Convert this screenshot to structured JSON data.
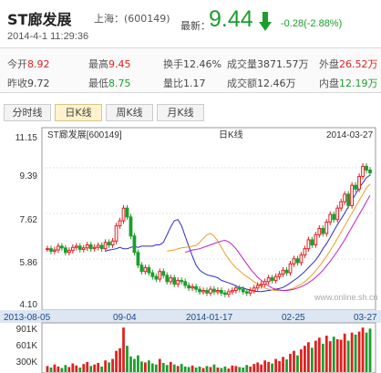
{
  "header": {
    "name": "ST廊发展",
    "exchange": "上海：(600149)",
    "datetime": "2014-4-1 11:29:36",
    "latest_label": "最新：",
    "price": "9.44",
    "change": "-0.28(-2.88%)",
    "arrow_icon": "down-arrow-icon"
  },
  "stats": {
    "open_label": "今开",
    "open": "8.92",
    "high_label": "最高",
    "high": "9.45",
    "turnover_label": "换手",
    "turnover": "12.46%",
    "volume_label": "成交量",
    "volume": "3871.57万",
    "outer_label": "外盘",
    "outer": "26.52万",
    "prev_label": "昨收",
    "prev": "9.72",
    "low_label": "最低",
    "low": "8.75",
    "ratio_label": "量比",
    "ratio": "1.17",
    "amount_label": "成交额",
    "amount": "12.46万",
    "inner_label": "内盘",
    "inner": "12.19万"
  },
  "tabs": [
    "分时线",
    "日K线",
    "周K线",
    "月K线"
  ],
  "active_tab": 1,
  "colors": {
    "up": "#e02020",
    "down": "#1c9e2c",
    "ma5": "#2c2cc8",
    "ma10": "#e8a020",
    "ma20": "#c020c0"
  },
  "chart_data": {
    "type": "candlestick",
    "title": "日K线",
    "series_label": "ST廊发展[600149]",
    "start_date": "2013-08-05",
    "end_date": "2014-03-27",
    "watermark": "www.online.sh.cn",
    "y_ticks": [
      "11.15",
      "9.39",
      "7.62",
      "5.86",
      "4.10"
    ],
    "ylim": [
      4.1,
      11.15
    ],
    "x_ticks": [
      "2013-08-05",
      "09-04",
      "2014-01-17",
      "02-25",
      "03-27"
    ],
    "close": [
      6.45,
      6.35,
      6.4,
      6.55,
      6.48,
      6.3,
      6.38,
      6.5,
      6.55,
      6.42,
      6.48,
      6.6,
      6.45,
      6.5,
      6.58,
      6.45,
      6.7,
      6.6,
      6.75,
      7.35,
      7.55,
      8.05,
      7.7,
      6.95,
      6.3,
      5.8,
      5.55,
      5.7,
      5.5,
      5.35,
      5.25,
      5.55,
      5.4,
      5.15,
      5.3,
      5.05,
      5.2,
      5.15,
      5.0,
      4.9,
      4.95,
      4.85,
      4.75,
      4.8,
      4.7,
      4.85,
      4.75,
      4.8,
      4.7,
      4.65,
      4.75,
      4.8,
      4.9,
      4.85,
      4.75,
      4.7,
      4.8,
      4.9,
      5.0,
      5.05,
      5.15,
      5.3,
      5.2,
      5.35,
      5.45,
      5.6,
      5.5,
      5.85,
      6.05,
      5.9,
      6.2,
      6.45,
      6.8,
      6.6,
      7.0,
      7.25,
      7.05,
      7.5,
      7.8,
      7.6,
      8.05,
      8.3,
      8.6,
      8.15,
      8.95,
      8.8,
      9.3,
      9.7,
      9.55,
      9.44
    ],
    "volume_ticks": [
      "901K",
      "601K",
      "300K"
    ],
    "volume_max_k": 901,
    "volume_k": [
      120,
      90,
      150,
      110,
      80,
      140,
      100,
      170,
      130,
      90,
      160,
      200,
      120,
      150,
      180,
      110,
      230,
      190,
      260,
      420,
      470,
      880,
      520,
      310,
      260,
      330,
      210,
      190,
      230,
      170,
      150,
      260,
      180,
      140,
      200,
      150,
      120,
      160,
      110,
      100,
      130,
      90,
      110,
      80,
      120,
      100,
      150,
      90,
      80,
      110,
      70,
      130,
      120,
      100,
      90,
      140,
      110,
      160,
      190,
      150,
      230,
      200,
      170,
      260,
      220,
      300,
      250,
      360,
      420,
      330,
      450,
      520,
      590,
      480,
      620,
      680,
      560,
      720,
      610,
      700,
      650,
      640,
      760,
      620,
      780,
      740,
      800,
      880,
      780,
      860
    ],
    "ma5": [
      6.35,
      6.4,
      6.42,
      6.45,
      6.5,
      6.45,
      6.45,
      6.5,
      6.55,
      6.5,
      6.55,
      6.55,
      6.55,
      6.55,
      6.6,
      6.6,
      6.7,
      7.0,
      7.3,
      7.55,
      7.6,
      7.35,
      6.95,
      6.55,
      6.15,
      5.8,
      5.6,
      5.5,
      5.42,
      5.38,
      5.35,
      5.3,
      5.2,
      5.15,
      5.1,
      5.05,
      4.98,
      4.92,
      4.9,
      4.85,
      4.82,
      4.78,
      4.76,
      4.76,
      4.78,
      4.8,
      4.82,
      4.85,
      4.88,
      4.92,
      5.0,
      5.1,
      5.2,
      5.3,
      5.42,
      5.55,
      5.7,
      5.85,
      6.0,
      6.2,
      6.45,
      6.65,
      6.9,
      7.15,
      7.4,
      7.62,
      7.85,
      8.1,
      8.35,
      8.6,
      8.85,
      9.05,
      9.25,
      9.35
    ],
    "ma10": [
      6.35,
      6.38,
      6.4,
      6.45,
      6.48,
      6.5,
      6.52,
      6.55,
      6.58,
      6.7,
      6.85,
      7.0,
      7.05,
      6.95,
      6.75,
      6.5,
      6.25,
      6.05,
      5.85,
      5.7,
      5.58,
      5.45,
      5.35,
      5.25,
      5.15,
      5.05,
      4.98,
      4.9,
      4.85,
      4.82,
      4.8,
      4.8,
      4.8,
      4.82,
      4.85,
      4.9,
      4.98,
      5.05,
      5.15,
      5.28,
      5.42,
      5.58,
      5.75,
      5.95,
      6.15,
      6.38,
      6.6,
      6.85,
      7.1,
      7.35,
      7.6,
      7.85,
      8.1,
      8.35,
      8.6,
      8.85,
      9.0
    ],
    "ma20": [
      6.3,
      6.35,
      6.4,
      6.42,
      6.45,
      6.5,
      6.55,
      6.6,
      6.65,
      6.7,
      6.75,
      6.78,
      6.72,
      6.6,
      6.45,
      6.25,
      6.05,
      5.85,
      5.65,
      5.48,
      5.32,
      5.2,
      5.08,
      4.98,
      4.9,
      4.85,
      4.82,
      4.8,
      4.8,
      4.82,
      4.85,
      4.9,
      4.95,
      5.02,
      5.1,
      5.2,
      5.32,
      5.45,
      5.6,
      5.78,
      5.95,
      6.15,
      6.35,
      6.58,
      6.8,
      7.05,
      7.3,
      7.55,
      7.8,
      8.05,
      8.3,
      8.55
    ]
  }
}
